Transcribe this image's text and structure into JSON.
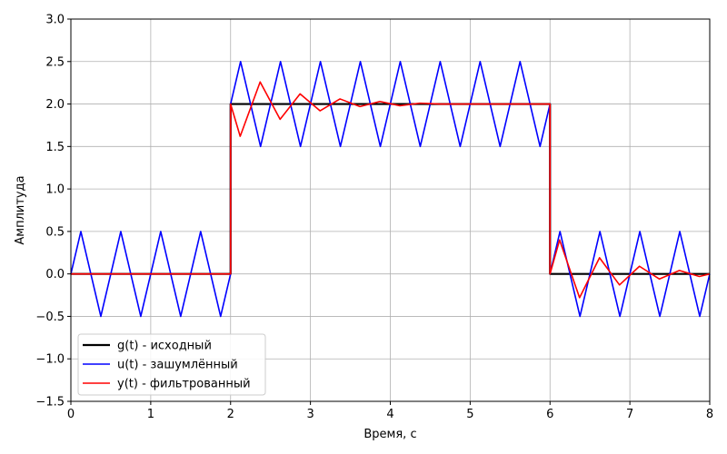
{
  "chart_data": {
    "type": "line",
    "title": "",
    "xlabel": "Время, с",
    "ylabel": "Амплитуда",
    "xlim": [
      0,
      8
    ],
    "ylim": [
      -1.5,
      3.0
    ],
    "xticks": [
      "0",
      "1",
      "2",
      "3",
      "4",
      "5",
      "6",
      "7",
      "8"
    ],
    "yticks": [
      "−1.5",
      "−1.0",
      "−0.5",
      "0.0",
      "0.5",
      "1.0",
      "1.5",
      "2.0",
      "2.5",
      "3.0"
    ],
    "grid": true,
    "legend_position": "lower-left",
    "series": [
      {
        "name": "g(t) - исходный",
        "color": "#000000",
        "x": [
          0,
          2,
          2,
          6,
          6,
          8
        ],
        "y": [
          0,
          0,
          2,
          2,
          0,
          0
        ]
      },
      {
        "name": "u(t) - зашумлённый",
        "color": "#0000ff",
        "x": [
          0,
          0.125,
          0.375,
          0.625,
          0.875,
          1.125,
          1.375,
          1.625,
          1.875,
          2.0,
          2.0,
          2.125,
          2.375,
          2.625,
          2.875,
          3.125,
          3.375,
          3.625,
          3.875,
          4.125,
          4.375,
          4.625,
          4.875,
          5.125,
          5.375,
          5.625,
          5.875,
          6.0,
          6.0,
          6.125,
          6.375,
          6.625,
          6.875,
          7.125,
          7.375,
          7.625,
          7.875,
          8.0
        ],
        "y": [
          0,
          0.5,
          -0.5,
          0.5,
          -0.5,
          0.5,
          -0.5,
          0.5,
          -0.5,
          0,
          2.0,
          2.5,
          1.5,
          2.5,
          1.5,
          2.5,
          1.5,
          2.5,
          1.5,
          2.5,
          1.5,
          2.5,
          1.5,
          2.5,
          1.5,
          2.5,
          1.5,
          2.0,
          0,
          0.5,
          -0.5,
          0.5,
          -0.5,
          0.5,
          -0.5,
          0.5,
          -0.5,
          0
        ]
      },
      {
        "name": "y(t) - фильтрованный",
        "color": "#ff0000",
        "x": [
          0,
          2.0,
          2.0,
          2.12,
          2.37,
          2.62,
          2.87,
          3.12,
          3.37,
          3.62,
          3.87,
          4.12,
          4.37,
          4.62,
          6.0,
          6.0,
          6.12,
          6.37,
          6.62,
          6.87,
          7.12,
          7.37,
          7.62,
          7.87,
          8.0
        ],
        "y": [
          0,
          0,
          2.0,
          1.62,
          2.26,
          1.82,
          2.12,
          1.92,
          2.06,
          1.97,
          2.03,
          1.98,
          2.01,
          2.0,
          2.0,
          0,
          0.4,
          -0.28,
          0.19,
          -0.13,
          0.09,
          -0.06,
          0.04,
          -0.03,
          0
        ]
      }
    ]
  }
}
